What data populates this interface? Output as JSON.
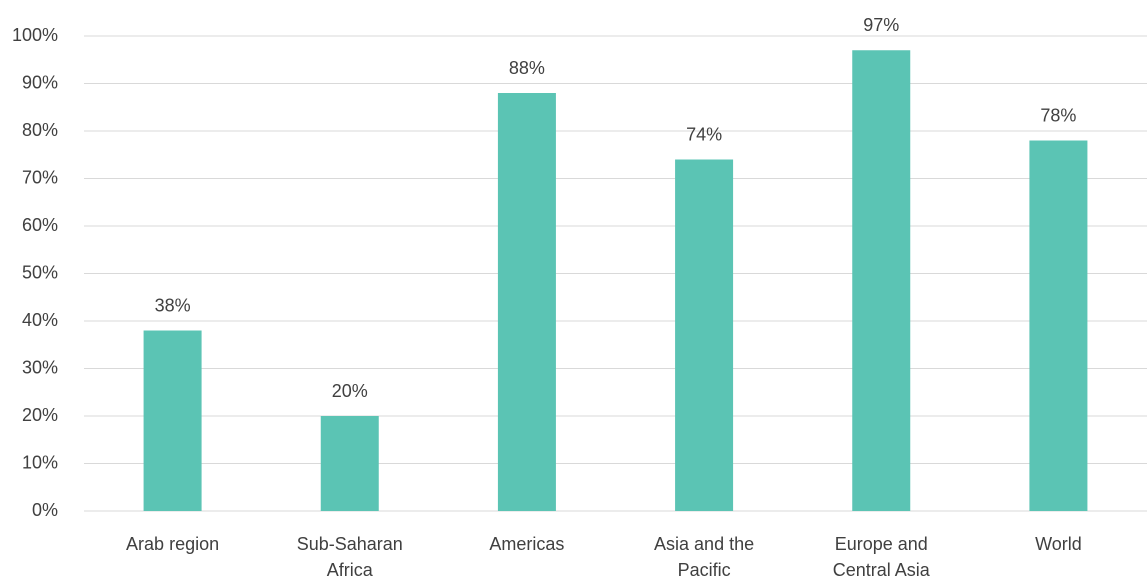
{
  "chart_data": {
    "type": "bar",
    "categories": [
      "Arab region",
      "Sub-Saharan Africa",
      "Americas",
      "Asia and the Pacific",
      "Europe and Central Asia",
      "World"
    ],
    "values": [
      38,
      20,
      88,
      74,
      97,
      78
    ],
    "value_labels": [
      "38%",
      "20%",
      "88%",
      "74%",
      "97%",
      "78%"
    ],
    "color": "#5bc4b4",
    "ylim": [
      0,
      100
    ],
    "yticks": [
      {
        "value": 0,
        "label": "0%"
      },
      {
        "value": 10,
        "label": "10%"
      },
      {
        "value": 20,
        "label": "20%"
      },
      {
        "value": 30,
        "label": "30%"
      },
      {
        "value": 40,
        "label": "40%"
      },
      {
        "value": 50,
        "label": "50%"
      },
      {
        "value": 60,
        "label": "60%"
      },
      {
        "value": 70,
        "label": "70%"
      },
      {
        "value": 80,
        "label": "80%"
      },
      {
        "value": 90,
        "label": "90%"
      },
      {
        "value": 100,
        "label": "100%"
      }
    ],
    "grid": true
  }
}
